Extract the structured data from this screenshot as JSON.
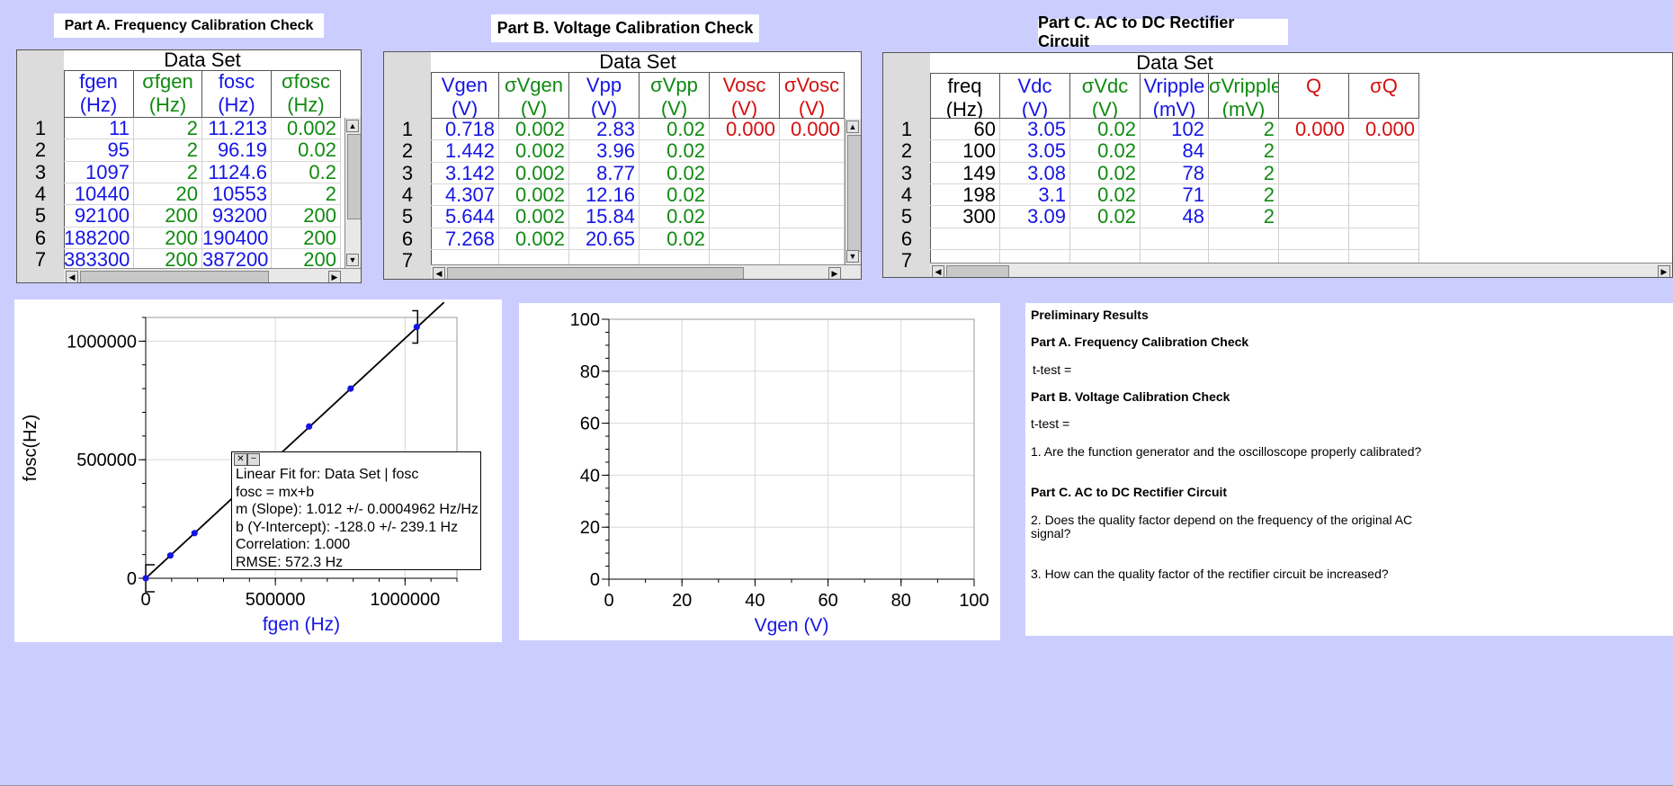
{
  "partA": {
    "title": "Part A. Frequency Calibration Check",
    "dataset_label": "Data Set",
    "columns": [
      {
        "name": "fgen",
        "unit": "(Hz)",
        "color": "#1515e6"
      },
      {
        "name": "σfgen",
        "unit": "(Hz)",
        "color": "#108a10"
      },
      {
        "name": "fosc",
        "unit": "(Hz)",
        "color": "#1515e6"
      },
      {
        "name": "σfosc",
        "unit": "(Hz)",
        "color": "#108a10"
      }
    ],
    "row_numbers": [
      "1",
      "2",
      "3",
      "4",
      "5",
      "6",
      "7"
    ],
    "rows": [
      [
        "11",
        "2",
        "11.213",
        "0.002"
      ],
      [
        "95",
        "2",
        "96.19",
        "0.02"
      ],
      [
        "1097",
        "2",
        "1124.6",
        "0.2"
      ],
      [
        "10440",
        "20",
        "10553",
        "2"
      ],
      [
        "92100",
        "200",
        "93200",
        "200"
      ],
      [
        "188200",
        "200",
        "190400",
        "200"
      ],
      [
        "383300",
        "200",
        "387200",
        "200"
      ]
    ]
  },
  "partB": {
    "title": "Part B. Voltage Calibration Check",
    "dataset_label": "Data Set",
    "columns": [
      {
        "name": "Vgen",
        "unit": "(V)",
        "color": "#1515e6"
      },
      {
        "name": "σVgen",
        "unit": "(V)",
        "color": "#108a10"
      },
      {
        "name": "Vpp",
        "unit": "(V)",
        "color": "#1515e6"
      },
      {
        "name": "σVpp",
        "unit": "(V)",
        "color": "#108a10"
      },
      {
        "name": "Vosc",
        "unit": "(V)",
        "color": "#d60f0f"
      },
      {
        "name": "σVosc",
        "unit": "(V)",
        "color": "#d60f0f"
      }
    ],
    "row_numbers": [
      "1",
      "2",
      "3",
      "4",
      "5",
      "6",
      "7"
    ],
    "rows": [
      [
        "0.718",
        "0.002",
        "2.83",
        "0.02",
        "0.000",
        "0.000"
      ],
      [
        "1.442",
        "0.002",
        "3.96",
        "0.02",
        "",
        ""
      ],
      [
        "3.142",
        "0.002",
        "8.77",
        "0.02",
        "",
        ""
      ],
      [
        "4.307",
        "0.002",
        "12.16",
        "0.02",
        "",
        ""
      ],
      [
        "5.644",
        "0.002",
        "15.84",
        "0.02",
        "",
        ""
      ],
      [
        "7.268",
        "0.002",
        "20.65",
        "0.02",
        "",
        ""
      ],
      [
        "",
        "",
        "",
        "",
        "",
        ""
      ]
    ]
  },
  "partC": {
    "title": "Part C. AC to DC Rectifier Circuit",
    "dataset_label": "Data Set",
    "columns": [
      {
        "name": "freq",
        "unit": "(Hz)",
        "color": "#000000"
      },
      {
        "name": "Vdc",
        "unit": "(V)",
        "color": "#1515e6"
      },
      {
        "name": "σVdc",
        "unit": "(V)",
        "color": "#108a10"
      },
      {
        "name": "Vripple",
        "unit": "(mV)",
        "color": "#1515e6"
      },
      {
        "name": "σVripple",
        "unit": "(mV)",
        "color": "#108a10"
      },
      {
        "name": "Q",
        "unit": "",
        "color": "#d60f0f"
      },
      {
        "name": "σQ",
        "unit": "",
        "color": "#d60f0f"
      }
    ],
    "row_numbers": [
      "1",
      "2",
      "3",
      "4",
      "5",
      "6",
      "7"
    ],
    "rows": [
      [
        "60",
        "3.05",
        "0.02",
        "102",
        "2",
        "0.000",
        "0.000"
      ],
      [
        "100",
        "3.05",
        "0.02",
        "84",
        "2",
        "",
        ""
      ],
      [
        "149",
        "3.08",
        "0.02",
        "78",
        "2",
        "",
        ""
      ],
      [
        "198",
        "3.1",
        "0.02",
        "71",
        "2",
        "",
        ""
      ],
      [
        "300",
        "3.09",
        "0.02",
        "48",
        "2",
        "",
        ""
      ],
      [
        "",
        "",
        "",
        "",
        "",
        "",
        ""
      ],
      [
        "",
        "",
        "",
        "",
        "",
        "",
        ""
      ]
    ]
  },
  "chart_data": [
    {
      "type": "scatter",
      "xlabel": "fgen (Hz)",
      "ylabel": "fosc(Hz)",
      "xlim": [
        0,
        1200000
      ],
      "ylim": [
        0,
        1100000
      ],
      "x_ticks": [
        "0",
        "500000",
        "1000000"
      ],
      "y_ticks": [
        "0",
        "500000",
        "1000000"
      ],
      "grid": true,
      "points": [
        {
          "x": 0,
          "y": 0
        },
        {
          "x": 95000,
          "y": 96000
        },
        {
          "x": 188200,
          "y": 190400
        },
        {
          "x": 383300,
          "y": 387200
        },
        {
          "x": 630000,
          "y": 640000
        },
        {
          "x": 790000,
          "y": 800000
        },
        {
          "x": 1045000,
          "y": 1060000
        }
      ],
      "fit_line": {
        "slope": 1.012,
        "intercept": -128.0
      },
      "fit_box": [
        "Linear Fit for: Data Set | fosc",
        "fosc = mx+b",
        "m (Slope): 1.012 +/- 0.0004962 Hz/Hz",
        "b (Y-Intercept): -128.0 +/- 239.1 Hz",
        "Correlation: 1.000",
        "RMSE: 572.3 Hz"
      ]
    },
    {
      "type": "scatter",
      "xlabel": "Vgen (V)",
      "ylabel": "",
      "xlim": [
        0,
        100
      ],
      "ylim": [
        0,
        100
      ],
      "x_ticks": [
        "0",
        "20",
        "40",
        "60",
        "80",
        "100"
      ],
      "y_ticks": [
        "0",
        "20",
        "40",
        "60",
        "80",
        "100"
      ],
      "grid": true,
      "points": []
    }
  ],
  "results": {
    "heading": "Preliminary Results",
    "partA": "Part A. Frequency Calibration Check",
    "ttestA": "t-test =",
    "partB": "Part B. Voltage Calibration Check",
    "ttestB": "t-test =",
    "q1": "1. Are the function generator and the oscilloscope properly calibrated?",
    "partC": "Part C. AC to DC Rectifier Circuit",
    "q2a": "2. Does the quality factor depend on the frequency of the original AC",
    "q2b": "signal?",
    "q3": "3. How can the quality factor of the rectifier circuit be increased?"
  }
}
